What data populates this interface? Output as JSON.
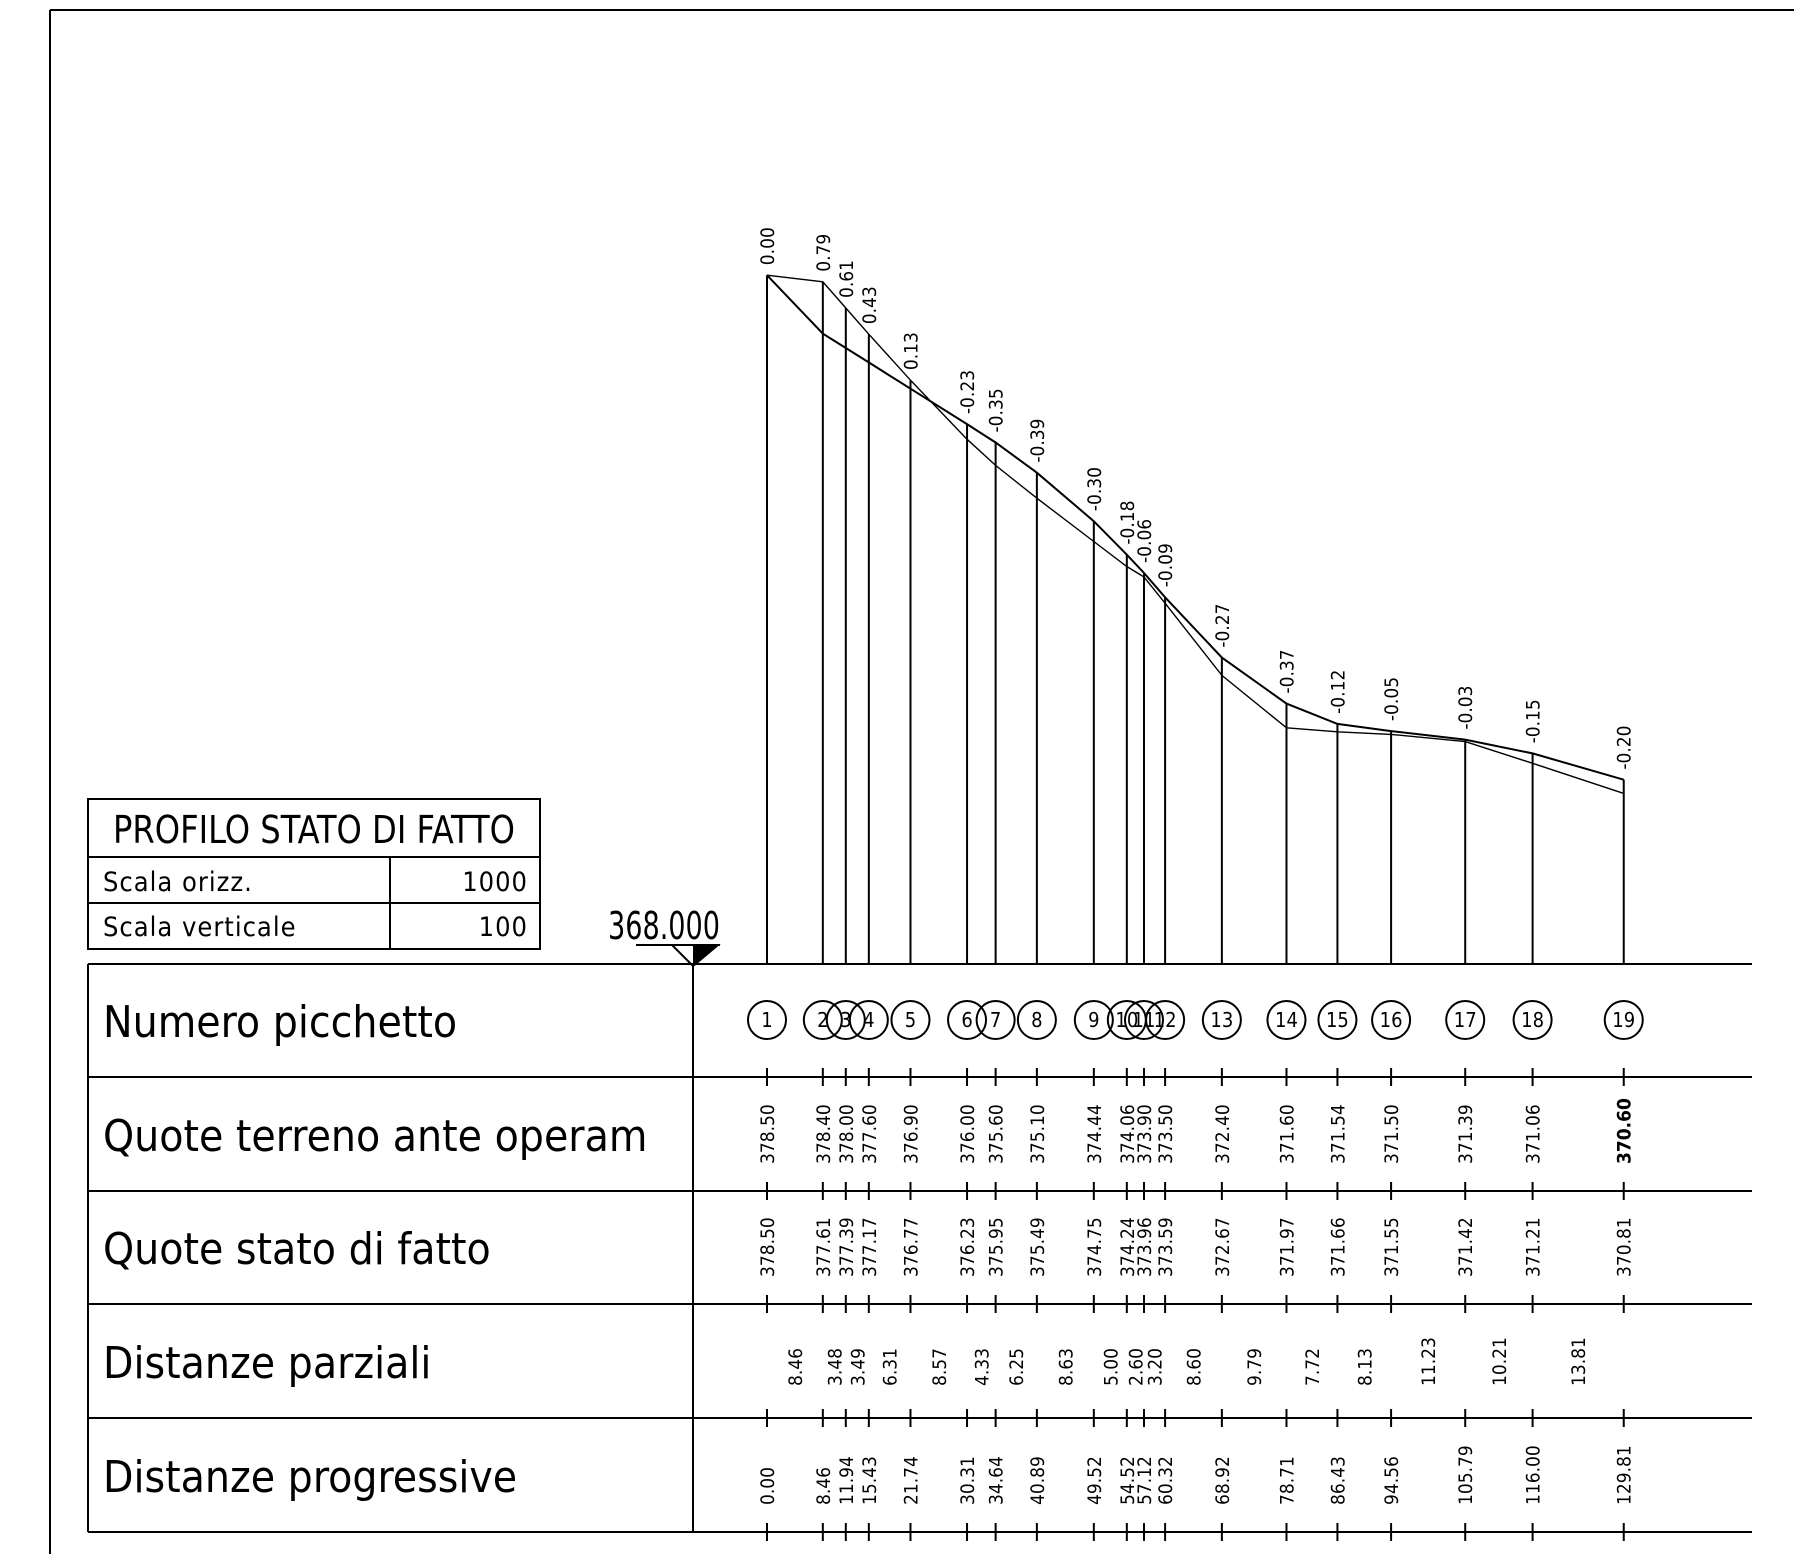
{
  "title_box": {
    "title": "PROFILO STATO DI FATTO",
    "rows": [
      {
        "label": "Scala orizz.",
        "value": "1000"
      },
      {
        "label": "Scala verticale",
        "value": "100"
      }
    ]
  },
  "datum": "368.000",
  "rows": [
    {
      "key": "picchetti",
      "label": "Numero picchetto"
    },
    {
      "key": "quote_ante",
      "label": "Quote terreno ante operam"
    },
    {
      "key": "quote_fatto",
      "label": "Quote stato di fatto"
    },
    {
      "key": "parziali",
      "label": "Distanze parziali"
    },
    {
      "key": "progressive",
      "label": "Distanze progressive"
    }
  ],
  "stations": [
    {
      "n": "1",
      "prog": "0.00",
      "ante": "378.50",
      "fatto": "378.50",
      "diff": "0.00"
    },
    {
      "n": "2",
      "prog": "8.46",
      "ante": "378.40",
      "fatto": "377.61",
      "diff": "0.79"
    },
    {
      "n": "3",
      "prog": "11.94",
      "ante": "378.00",
      "fatto": "377.39",
      "diff": "0.61"
    },
    {
      "n": "4",
      "prog": "15.43",
      "ante": "377.60",
      "fatto": "377.17",
      "diff": "0.43"
    },
    {
      "n": "5",
      "prog": "21.74",
      "ante": "376.90",
      "fatto": "376.77",
      "diff": "0.13"
    },
    {
      "n": "6",
      "prog": "30.31",
      "ante": "376.00",
      "fatto": "376.23",
      "diff": "-0.23"
    },
    {
      "n": "7",
      "prog": "34.64",
      "ante": "375.60",
      "fatto": "375.95",
      "diff": "-0.35"
    },
    {
      "n": "8",
      "prog": "40.89",
      "ante": "375.10",
      "fatto": "375.49",
      "diff": "-0.39"
    },
    {
      "n": "9",
      "prog": "49.52",
      "ante": "374.44",
      "fatto": "374.75",
      "diff": "-0.30"
    },
    {
      "n": "10",
      "prog": "54.52",
      "ante": "374.06",
      "fatto": "374.24",
      "diff": "-0.18"
    },
    {
      "n": "11",
      "prog": "57.12",
      "ante": "373.90",
      "fatto": "373.96",
      "diff": "-0.06"
    },
    {
      "n": "12",
      "prog": "60.32",
      "ante": "373.50",
      "fatto": "373.59",
      "diff": "-0.09"
    },
    {
      "n": "13",
      "prog": "68.92",
      "ante": "372.40",
      "fatto": "372.67",
      "diff": "-0.27"
    },
    {
      "n": "14",
      "prog": "78.71",
      "ante": "371.60",
      "fatto": "371.97",
      "diff": "-0.37"
    },
    {
      "n": "15",
      "prog": "86.43",
      "ante": "371.54",
      "fatto": "371.66",
      "diff": "-0.12"
    },
    {
      "n": "16",
      "prog": "94.56",
      "ante": "371.50",
      "fatto": "371.55",
      "diff": "-0.05"
    },
    {
      "n": "17",
      "prog": "105.79",
      "ante": "371.39",
      "fatto": "371.42",
      "diff": "-0.03"
    },
    {
      "n": "18",
      "prog": "116.00",
      "ante": "371.06",
      "fatto": "371.21",
      "diff": "-0.15"
    },
    {
      "n": "19",
      "prog": "129.81",
      "ante": "370.60",
      "fatto": "370.81",
      "diff": "-0.20"
    }
  ],
  "partial_distances": [
    "8.46",
    "3.48",
    "3.49",
    "6.31",
    "8.57",
    "4.33",
    "6.25",
    "8.63",
    "5.00",
    "2.60",
    "3.20",
    "8.60",
    "9.79",
    "7.72",
    "8.13",
    "11.23",
    "10.21",
    "13.81"
  ]
}
